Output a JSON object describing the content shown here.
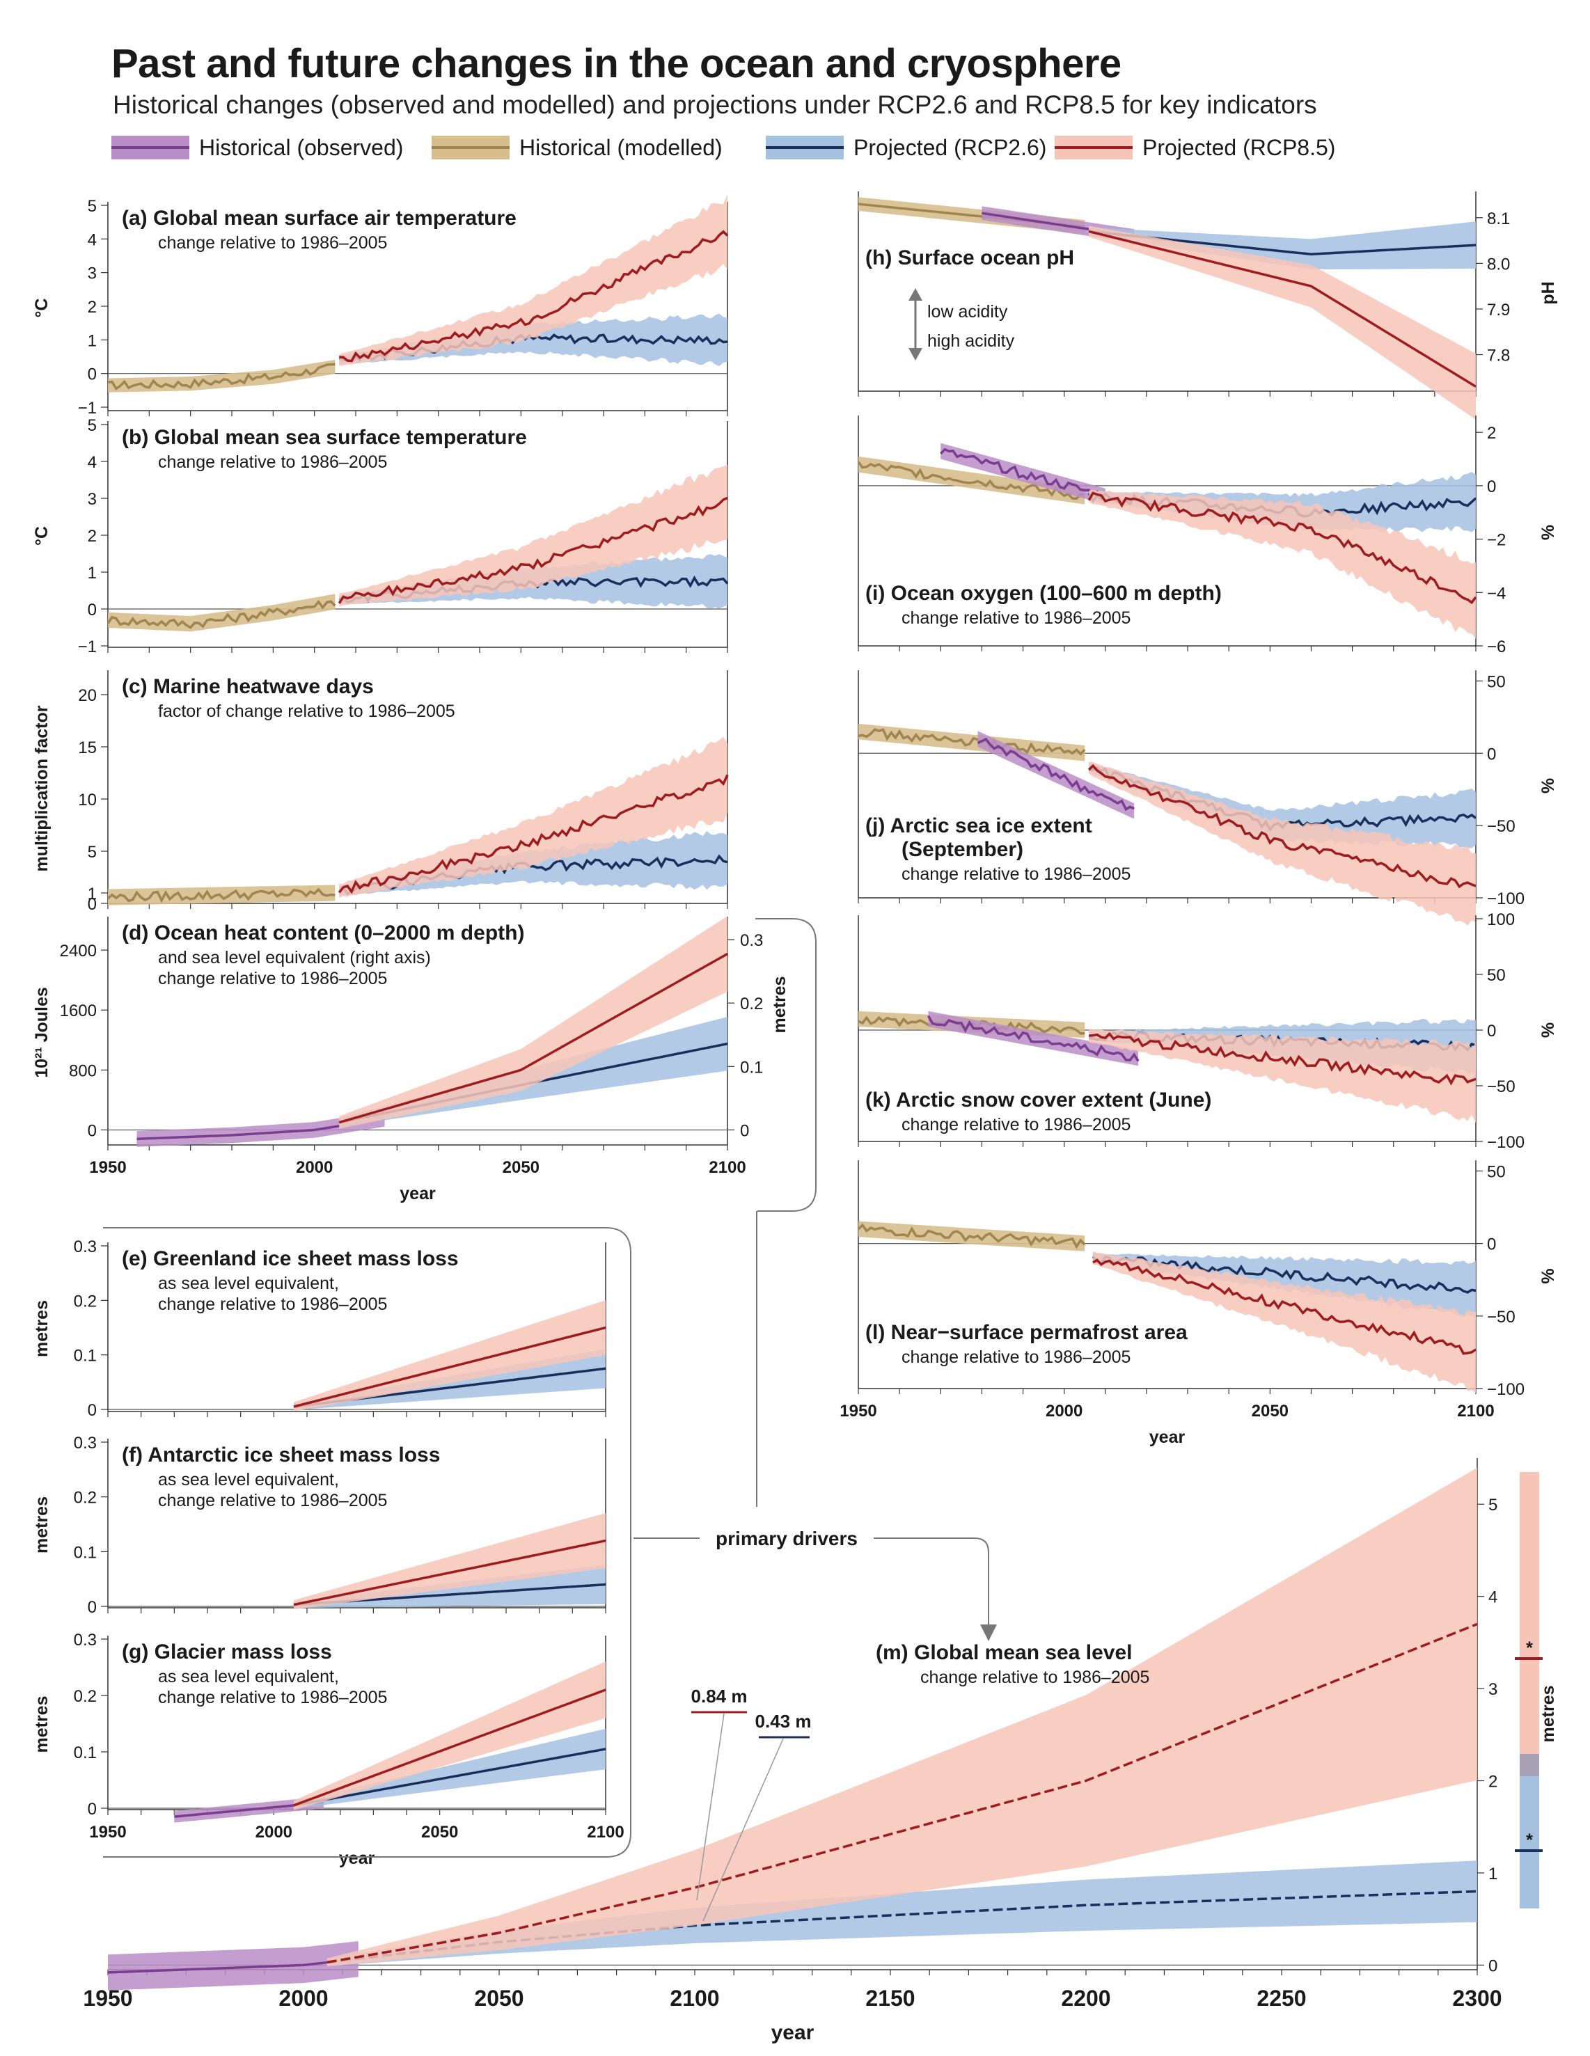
{
  "title": "Past and future changes in the ocean and cryosphere",
  "subtitle": "Historical changes (observed and modelled) and projections under RCP2.6 and RCP8.5 for key indicators",
  "legend": [
    {
      "label": "Historical (observed)",
      "band": "#b98dc5",
      "line": "#7a3d8f"
    },
    {
      "label": "Historical (modelled)",
      "band": "#d7bf8d",
      "line": "#a08550"
    },
    {
      "label": "Projected (RCP2.6)",
      "band": "#a4c1e0",
      "line": "#1c2f5c"
    },
    {
      "label": "Projected (RCP8.5)",
      "band": "#f7c5b8",
      "line": "#9e1c1e"
    }
  ],
  "colors": {
    "obs_band": "#b98dc5",
    "obs_line": "#7a3d8f",
    "mod_band": "#d7bf8d",
    "mod_line": "#a08550",
    "r26_band": "#a4c1e0",
    "r26_line": "#1c2f5c",
    "r85_band": "#f7c5b8",
    "r85_line": "#9e1c1e",
    "overlap": "#8a8aa6"
  },
  "annotations": {
    "low_acidity": "low acidity",
    "high_acidity": "high acidity",
    "primary_drivers": "primary drivers",
    "slr_rcp85_2100": "0.84 m",
    "slr_rcp26_2100": "0.43 m"
  },
  "chart_data": [
    {
      "id": "a",
      "type": "line",
      "title": "(a)  Global mean surface air temperature",
      "subtitle": "change relative to 1986–2005",
      "ylabel": "°C",
      "ylim": [
        -1,
        5
      ],
      "yticks": [
        "5",
        "4",
        "3",
        "2",
        "1",
        "0",
        "−1"
      ],
      "xlim": [
        1950,
        2100
      ],
      "series": [
        {
          "name": "Historical (modelled)",
          "x": [
            1950,
            1970,
            1990,
            2005
          ],
          "y": [
            -0.35,
            -0.3,
            -0.1,
            0.2
          ]
        },
        {
          "name": "Projected (RCP2.6)",
          "x": [
            2006,
            2050,
            2100
          ],
          "y": [
            0.4,
            1.05,
            1.0
          ]
        },
        {
          "name": "Projected (RCP8.5)",
          "x": [
            2006,
            2050,
            2100
          ],
          "y": [
            0.4,
            1.5,
            4.2
          ]
        }
      ]
    },
    {
      "id": "b",
      "type": "line",
      "title": "(b)  Global mean sea surface temperature",
      "subtitle": "change relative to 1986–2005",
      "ylabel": "°C",
      "ylim": [
        -1,
        5
      ],
      "yticks": [
        "5",
        "4",
        "3",
        "2",
        "1",
        "0",
        "−1"
      ],
      "xlim": [
        1950,
        2100
      ],
      "series": [
        {
          "name": "Historical (modelled)",
          "x": [
            1950,
            1970,
            1990,
            2005
          ],
          "y": [
            -0.3,
            -0.4,
            -0.1,
            0.2
          ]
        },
        {
          "name": "Projected (RCP2.6)",
          "x": [
            2006,
            2050,
            2100
          ],
          "y": [
            0.25,
            0.7,
            0.75
          ]
        },
        {
          "name": "Projected (RCP8.5)",
          "x": [
            2006,
            2050,
            2100
          ],
          "y": [
            0.25,
            1.1,
            2.9
          ]
        }
      ]
    },
    {
      "id": "c",
      "type": "line",
      "title": "(c)  Marine heatwave days",
      "subtitle": "factor of change relative to 1986–2005",
      "ylabel": "multiplication factor",
      "ylim": [
        0,
        22
      ],
      "yticks": [
        "20",
        "15",
        "10",
        "5",
        "1",
        "0"
      ],
      "xlim": [
        1950,
        2100
      ],
      "series": [
        {
          "name": "Historical (modelled)",
          "x": [
            1950,
            2005
          ],
          "y": [
            0.6,
            1.0
          ]
        },
        {
          "name": "Projected (RCP2.6)",
          "x": [
            2006,
            2050,
            2100
          ],
          "y": [
            1.2,
            3.5,
            4.2
          ]
        },
        {
          "name": "Projected (RCP8.5)",
          "x": [
            2006,
            2050,
            2100
          ],
          "y": [
            1.2,
            5.5,
            12.0
          ]
        }
      ]
    },
    {
      "id": "d",
      "type": "line",
      "title": "(d)  Ocean heat content (0–2000 m depth)",
      "subtitle": "and sea level equivalent (right axis)",
      "subtitle2": "change relative to 1986–2005",
      "ylabel": "10²¹ Joules",
      "ylabel_right": "metres",
      "ylim": [
        -200,
        2800
      ],
      "yticks": [
        "2400",
        "1600",
        "800",
        "0"
      ],
      "yticks_right": [
        "0.3",
        "0.2",
        "0.1",
        "0"
      ],
      "xlim": [
        1950,
        2100
      ],
      "xticks": [
        "1950",
        "2000",
        "2050",
        "2100"
      ],
      "xlabel": "year",
      "series": [
        {
          "name": "Historical (observed)",
          "x": [
            1957,
            1980,
            2000,
            2017
          ],
          "y": [
            -120,
            -70,
            0,
            150
          ]
        },
        {
          "name": "Projected (RCP2.6)",
          "x": [
            2006,
            2050,
            2100
          ],
          "y": [
            100,
            600,
            1150
          ]
        },
        {
          "name": "Projected (RCP8.5)",
          "x": [
            2006,
            2050,
            2100
          ],
          "y": [
            100,
            800,
            2350
          ]
        }
      ]
    },
    {
      "id": "e",
      "type": "line",
      "title": "(e)  Greenland ice sheet mass loss",
      "subtitle": "as sea level equivalent,",
      "subtitle2": "change relative to 1986–2005",
      "ylabel": "metres",
      "ylim": [
        0,
        0.3
      ],
      "yticks": [
        "0.3",
        "0.2",
        "0.1",
        "0"
      ],
      "xlim": [
        1950,
        2100
      ],
      "series": [
        {
          "name": "Projected (RCP2.6)",
          "x": [
            2006,
            2100
          ],
          "y": [
            0.005,
            0.075
          ]
        },
        {
          "name": "Projected (RCP8.5)",
          "x": [
            2006,
            2100
          ],
          "y": [
            0.005,
            0.15
          ]
        }
      ]
    },
    {
      "id": "f",
      "type": "line",
      "title": "(f)  Antarctic ice sheet mass loss",
      "subtitle": "as sea level equivalent,",
      "subtitle2": "change relative to 1986–2005",
      "ylabel": "metres",
      "ylim": [
        0,
        0.3
      ],
      "yticks": [
        "0.3",
        "0.2",
        "0.1",
        "0"
      ],
      "xlim": [
        1950,
        2100
      ],
      "series": [
        {
          "name": "Projected (RCP2.6)",
          "x": [
            2006,
            2100
          ],
          "y": [
            0.003,
            0.04
          ]
        },
        {
          "name": "Projected (RCP8.5)",
          "x": [
            2006,
            2100
          ],
          "y": [
            0.003,
            0.12
          ]
        }
      ]
    },
    {
      "id": "g",
      "type": "line",
      "title": "(g)  Glacier mass loss",
      "subtitle": "as sea level equivalent,",
      "subtitle2": "change relative to 1986–2005",
      "ylabel": "metres",
      "ylim": [
        0,
        0.3
      ],
      "yticks": [
        "0.3",
        "0.2",
        "0.1",
        "0"
      ],
      "xlim": [
        1950,
        2100
      ],
      "xticks": [
        "1950",
        "2000",
        "2050",
        "2100"
      ],
      "xlabel": "year",
      "series": [
        {
          "name": "Historical (observed)",
          "x": [
            1970,
            2015
          ],
          "y": [
            -0.015,
            0.01
          ]
        },
        {
          "name": "Projected (RCP2.6)",
          "x": [
            2006,
            2100
          ],
          "y": [
            0.005,
            0.105
          ]
        },
        {
          "name": "Projected (RCP8.5)",
          "x": [
            2006,
            2100
          ],
          "y": [
            0.005,
            0.21
          ]
        }
      ]
    },
    {
      "id": "h",
      "type": "line",
      "title": "(h)  Surface ocean pH",
      "ylabel": "pH",
      "ylim": [
        7.72,
        8.15
      ],
      "yticks": [
        "8.1",
        "8.0",
        "7.9",
        "7.8"
      ],
      "xlim": [
        1950,
        2100
      ],
      "series": [
        {
          "name": "Historical (modelled)",
          "x": [
            1950,
            2005
          ],
          "y": [
            8.13,
            8.08
          ]
        },
        {
          "name": "Historical (observed)",
          "x": [
            1980,
            2017
          ],
          "y": [
            8.11,
            8.06
          ]
        },
        {
          "name": "Projected (RCP2.6)",
          "x": [
            2006,
            2060,
            2100
          ],
          "y": [
            8.07,
            8.02,
            8.04
          ]
        },
        {
          "name": "Projected (RCP8.5)",
          "x": [
            2006,
            2060,
            2100
          ],
          "y": [
            8.07,
            7.95,
            7.73
          ]
        }
      ]
    },
    {
      "id": "i",
      "type": "line",
      "title": "(i)  Ocean oxygen (100–600 m depth)",
      "subtitle": "change relative to 1986–2005",
      "ylabel": "%",
      "ylim": [
        -6,
        2.5
      ],
      "yticks": [
        "2",
        "0",
        "−2",
        "−4",
        "−6"
      ],
      "xlim": [
        1950,
        2100
      ],
      "series": [
        {
          "name": "Historical (modelled)",
          "x": [
            1950,
            2005
          ],
          "y": [
            0.8,
            -0.4
          ]
        },
        {
          "name": "Historical (observed)",
          "x": [
            1970,
            2010
          ],
          "y": [
            1.3,
            -0.4
          ]
        },
        {
          "name": "Projected (RCP2.6)",
          "x": [
            2006,
            2060,
            2100
          ],
          "y": [
            -0.4,
            -1.0,
            -0.6
          ]
        },
        {
          "name": "Projected (RCP8.5)",
          "x": [
            2006,
            2060,
            2100
          ],
          "y": [
            -0.4,
            -1.6,
            -4.3
          ]
        }
      ]
    },
    {
      "id": "j",
      "type": "line",
      "title": "(j)  Arctic sea ice extent",
      "title2": "(September)",
      "subtitle": "change relative to 1986–2005",
      "ylabel": "%",
      "ylim": [
        -100,
        55
      ],
      "yticks": [
        "50",
        "0",
        "−50",
        "−100"
      ],
      "xlim": [
        1950,
        2100
      ],
      "series": [
        {
          "name": "Historical (modelled)",
          "x": [
            1950,
            2005
          ],
          "y": [
            15,
            0
          ]
        },
        {
          "name": "Historical (observed)",
          "x": [
            1979,
            2017
          ],
          "y": [
            10,
            -40
          ]
        },
        {
          "name": "Projected (RCP2.6)",
          "x": [
            2006,
            2050,
            2100
          ],
          "y": [
            -10,
            -50,
            -45
          ]
        },
        {
          "name": "Projected (RCP8.5)",
          "x": [
            2006,
            2050,
            2100
          ],
          "y": [
            -10,
            -60,
            -93
          ]
        }
      ]
    },
    {
      "id": "k",
      "type": "line",
      "title": "(k)  Arctic snow cover extent (June)",
      "subtitle": "change relative to 1986–2005",
      "ylabel": "%",
      "ylim": [
        -100,
        100
      ],
      "yticks": [
        "100",
        "50",
        "0",
        "−50",
        "−100"
      ],
      "xlim": [
        1950,
        2100
      ],
      "series": [
        {
          "name": "Historical (modelled)",
          "x": [
            1950,
            2005
          ],
          "y": [
            10,
            0
          ]
        },
        {
          "name": "Historical (observed)",
          "x": [
            1967,
            2018
          ],
          "y": [
            10,
            -25
          ]
        },
        {
          "name": "Projected (RCP2.6)",
          "x": [
            2006,
            2100
          ],
          "y": [
            -5,
            -15
          ]
        },
        {
          "name": "Projected (RCP8.5)",
          "x": [
            2006,
            2100
          ],
          "y": [
            -5,
            -47
          ]
        }
      ]
    },
    {
      "id": "l",
      "type": "line",
      "title": "(l)  Near−surface permafrost area",
      "subtitle": "change relative to 1986–2005",
      "ylabel": "%",
      "ylim": [
        -100,
        55
      ],
      "yticks": [
        "50",
        "0",
        "−50",
        "−100"
      ],
      "xlim": [
        1950,
        2100
      ],
      "xticks": [
        "1950",
        "2000",
        "2050",
        "2100"
      ],
      "xlabel": "year",
      "series": [
        {
          "name": "Historical (modelled)",
          "x": [
            1950,
            2005
          ],
          "y": [
            10,
            0
          ]
        },
        {
          "name": "Projected (RCP2.6)",
          "x": [
            2007,
            2100
          ],
          "y": [
            -10,
            -32
          ]
        },
        {
          "name": "Projected (RCP8.5)",
          "x": [
            2007,
            2100
          ],
          "y": [
            -10,
            -75
          ]
        }
      ]
    },
    {
      "id": "m",
      "type": "line",
      "title": "(m)  Global mean sea level",
      "subtitle": "change relative to 1986–2005",
      "ylabel_right": "metres",
      "ylim": [
        -0.05,
        5.5
      ],
      "yticks": [
        "5",
        "4",
        "3",
        "2",
        "1",
        "0"
      ],
      "xlim": [
        1950,
        2300
      ],
      "xticks": [
        "1950",
        "2000",
        "2050",
        "2100",
        "2150",
        "2200",
        "2250",
        "2300"
      ],
      "xlabel": "year",
      "series": [
        {
          "name": "Historical (observed)",
          "x": [
            1950,
            2000,
            2015
          ],
          "y": [
            -0.08,
            0,
            0.07
          ]
        },
        {
          "name": "Projected (RCP2.6)",
          "x": [
            2006,
            2050,
            2100,
            2200,
            2300
          ],
          "y": [
            0.03,
            0.25,
            0.43,
            0.65,
            0.8
          ]
        },
        {
          "name": "Projected (RCP8.5)",
          "x": [
            2006,
            2050,
            2100,
            2200,
            2300
          ],
          "y": [
            0.03,
            0.35,
            0.84,
            2.0,
            3.7
          ]
        }
      ]
    }
  ]
}
